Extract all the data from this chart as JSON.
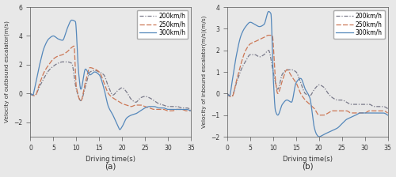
{
  "title_a": "(a)",
  "title_b": "(b)",
  "ylabel_a": "Velocity of outbound escalator(m/s)",
  "ylabel_b": "Velocity of inbound escalator(m/s)(m/s)",
  "xlabel": "Driving time(s)",
  "legend_labels": [
    "200km/h",
    "250km/h",
    "300km/h"
  ],
  "color_200": "#7a7a8a",
  "color_250": "#cc7755",
  "color_300": "#5588bb",
  "bg_color": "#e8e8e8",
  "ylim_a": [
    -3,
    6
  ],
  "ylim_b": [
    -2,
    4
  ],
  "xlim": [
    0,
    35
  ],
  "yticks_a": [
    -2,
    0,
    2,
    4,
    6
  ],
  "yticks_b": [
    -2,
    -1,
    0,
    1,
    2,
    3,
    4
  ],
  "xticks": [
    0,
    5,
    10,
    15,
    20,
    25,
    30,
    35
  ]
}
